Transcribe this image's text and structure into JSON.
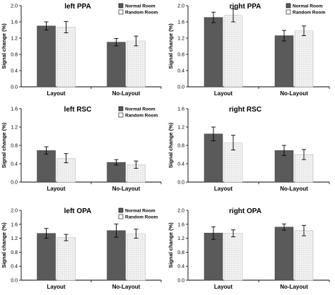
{
  "chart_data": [
    {
      "type": "bar",
      "title": "left PPA",
      "ylabel": "Signal change (%)",
      "categories": [
        "Layout",
        "No-Layout"
      ],
      "ylim": [
        0,
        2.0
      ],
      "yticks": [
        "0.0",
        "0.4",
        "0.8",
        "1.2",
        "1.6",
        "2.0"
      ],
      "legend": "top-right",
      "series": [
        {
          "name": "Normal Room",
          "values": [
            1.5,
            1.1
          ],
          "errors": [
            0.1,
            0.09
          ]
        },
        {
          "name": "Random Room",
          "values": [
            1.47,
            1.13
          ],
          "errors": [
            0.14,
            0.12
          ]
        }
      ]
    },
    {
      "type": "bar",
      "title": "right PPA",
      "ylabel": "Signal change (%)",
      "categories": [
        "Layout",
        "No-Layout"
      ],
      "ylim": [
        0,
        2.0
      ],
      "yticks": [
        "0.0",
        "0.4",
        "0.8",
        "1.2",
        "1.6",
        "2.0"
      ],
      "legend": "top-right",
      "series": [
        {
          "name": "Normal Room",
          "values": [
            1.71,
            1.26
          ],
          "errors": [
            0.13,
            0.13
          ]
        },
        {
          "name": "Random Room",
          "values": [
            1.76,
            1.38
          ],
          "errors": [
            0.16,
            0.12
          ]
        }
      ]
    },
    {
      "type": "bar",
      "title": "left RSC",
      "ylabel": "Signal change (%)",
      "categories": [
        "Layout",
        "No-Layout"
      ],
      "ylim": [
        0,
        1.6
      ],
      "yticks": [
        "0.0",
        "0.4",
        "0.8",
        "1.2",
        "1.6"
      ],
      "legend": "top-right",
      "series": [
        {
          "name": "Normal Room",
          "values": [
            0.69,
            0.43
          ],
          "errors": [
            0.08,
            0.06
          ]
        },
        {
          "name": "Random Room",
          "values": [
            0.52,
            0.38
          ],
          "errors": [
            0.1,
            0.08
          ]
        }
      ]
    },
    {
      "type": "bar",
      "title": "right RSC",
      "ylabel": "Signal change (%)",
      "categories": [
        "Layout",
        "No-Layout"
      ],
      "ylim": [
        0,
        1.6
      ],
      "yticks": [
        "0.0",
        "0.4",
        "0.8",
        "1.2",
        "1.6"
      ],
      "legend": "none",
      "series": [
        {
          "name": "Normal Room",
          "values": [
            1.05,
            0.69
          ],
          "errors": [
            0.15,
            0.11
          ]
        },
        {
          "name": "Random Room",
          "values": [
            0.86,
            0.6
          ],
          "errors": [
            0.16,
            0.11
          ]
        }
      ]
    },
    {
      "type": "bar",
      "title": "left OPA",
      "ylabel": "Signal change (%)",
      "categories": [
        "Layout",
        "No-Layout"
      ],
      "ylim": [
        0,
        2.0
      ],
      "yticks": [
        "0.0",
        "0.4",
        "0.8",
        "1.2",
        "1.6",
        "2.0"
      ],
      "legend": "top-right",
      "series": [
        {
          "name": "Normal Room",
          "values": [
            1.34,
            1.42
          ],
          "errors": [
            0.14,
            0.19
          ]
        },
        {
          "name": "Random Room",
          "values": [
            1.22,
            1.33
          ],
          "errors": [
            0.09,
            0.13
          ]
        }
      ]
    },
    {
      "type": "bar",
      "title": "right OPA",
      "ylabel": "Signal change (%)",
      "categories": [
        "Layout",
        "No-Layout"
      ],
      "ylim": [
        0,
        2.0
      ],
      "yticks": [
        "0.0",
        "0.4",
        "0.8",
        "1.2",
        "1.6",
        "2.0"
      ],
      "legend": "none",
      "series": [
        {
          "name": "Normal Room",
          "values": [
            1.35,
            1.52
          ],
          "errors": [
            0.18,
            0.09
          ]
        },
        {
          "name": "Random Room",
          "values": [
            1.34,
            1.42
          ],
          "errors": [
            0.1,
            0.15
          ]
        }
      ]
    }
  ],
  "colors": {
    "normal_fill": "#5a5a5a",
    "random_fill": "#f4f4f4",
    "random_dots": "#9a9a9a",
    "axis": "#000000"
  }
}
